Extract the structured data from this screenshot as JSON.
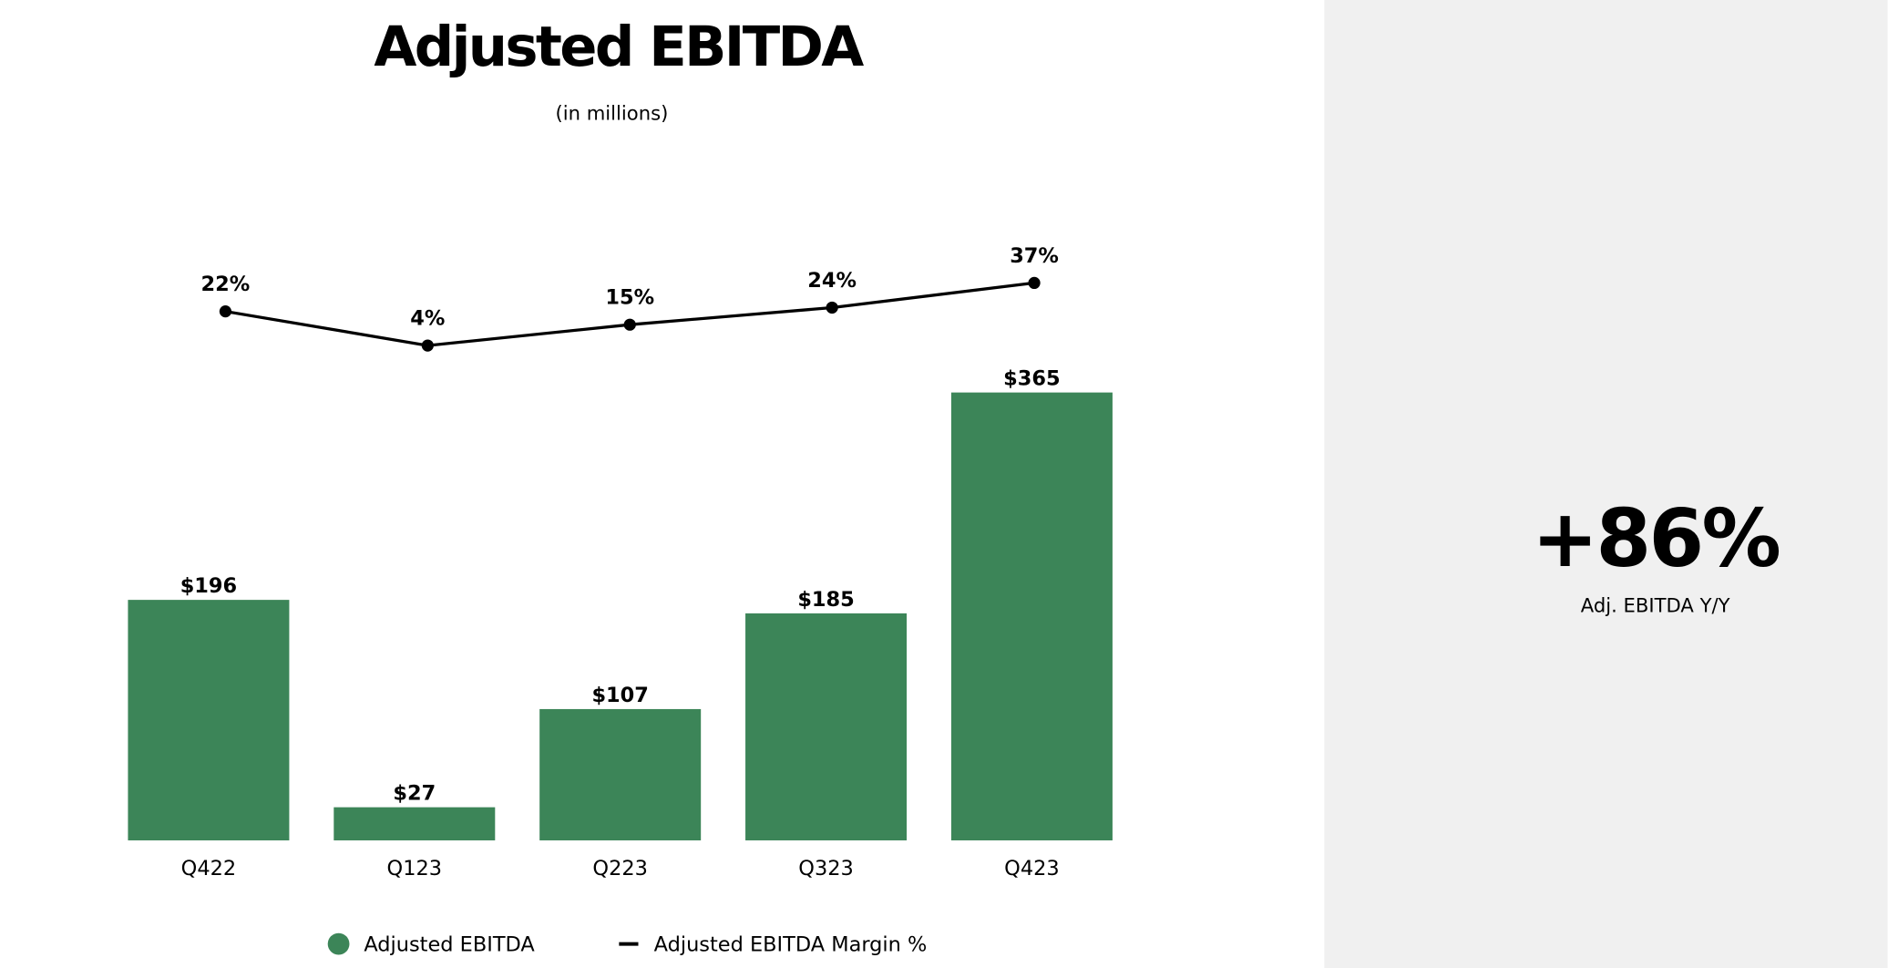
{
  "chart_data": {
    "type": "bar",
    "title": "Adjusted EBITDA",
    "subtitle": "(in millions)",
    "categories": [
      "Q422",
      "Q123",
      "Q223",
      "Q323",
      "Q423"
    ],
    "series": [
      {
        "name": "Adjusted EBITDA",
        "type": "bar",
        "color": "#3c8558",
        "values": [
          196,
          27,
          107,
          185,
          365
        ],
        "value_labels": [
          "$196",
          "$27",
          "$107",
          "$185",
          "$365"
        ]
      },
      {
        "name": "Adjusted EBITDA Margin %",
        "type": "line",
        "color": "#000000",
        "values": [
          22,
          4,
          15,
          24,
          37
        ],
        "value_labels": [
          "22%",
          "4%",
          "15%",
          "24%",
          "37%"
        ]
      }
    ]
  },
  "kpi": {
    "value": "+86%",
    "label": "Adj. EBITDA Y/Y"
  }
}
